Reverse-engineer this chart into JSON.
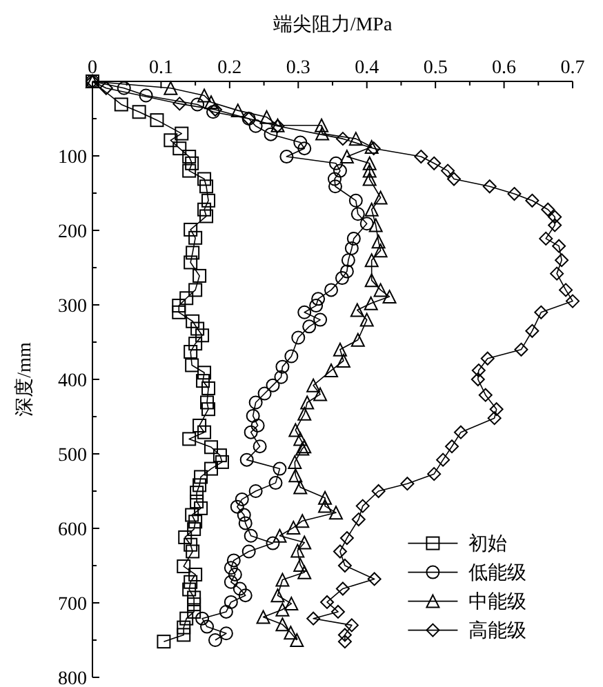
{
  "chart_data": {
    "type": "line",
    "xlabel": "端尖阻力/MPa",
    "ylabel": "深度/mm",
    "xlim": [
      0,
      0.7
    ],
    "xticks": [
      0,
      {
        "value": 0.05,
        "label": null
      },
      0.1,
      {
        "value": 0.15,
        "label": null
      },
      0.2,
      {
        "value": 0.25,
        "label": null
      },
      0.3,
      {
        "value": 0.35,
        "label": null
      },
      0.4,
      {
        "value": 0.45,
        "label": null
      },
      0.5,
      {
        "value": 0.55,
        "label": null
      },
      0.6,
      {
        "value": 0.65,
        "label": null
      },
      0.7
    ],
    "ylim": [
      800,
      0
    ],
    "yticks": [
      {
        "value": 0,
        "label": null
      },
      {
        "value": 50,
        "label": null
      },
      100,
      {
        "value": 150,
        "label": null
      },
      200,
      {
        "value": 250,
        "label": null
      },
      300,
      {
        "value": 350,
        "label": null
      },
      400,
      {
        "value": 450,
        "label": null
      },
      500,
      {
        "value": 550,
        "label": null
      },
      600,
      {
        "value": 650,
        "label": null
      },
      700,
      {
        "value": 750,
        "label": null
      },
      800
    ],
    "grid": false,
    "legend": "bottom right",
    "line_style": "solid",
    "series": [
      {
        "name": "初始",
        "color": "#000000",
        "marker": "square",
        "x": [
          0,
          0.042,
          0.068,
          0.094,
          0.13,
          0.114,
          0.127,
          0.141,
          0.145,
          0.141,
          0.163,
          0.166,
          0.169,
          0.163,
          0.166,
          0.143,
          0.15,
          0.146,
          0.143,
          0.156,
          0.15,
          0.137,
          0.126,
          0.126,
          0.146,
          0.153,
          0.16,
          0.15,
          0.143,
          0.145,
          0.163,
          0.161,
          0.169,
          0.167,
          0.169,
          0.156,
          0.163,
          0.141,
          0.173,
          0.186,
          0.189,
          0.173,
          0.158,
          0.156,
          0.152,
          0.152,
          0.158,
          0.145,
          0.15,
          0.148,
          0.135,
          0.143,
          0.146,
          0.133,
          0.15,
          0.143,
          0.141,
          0.148,
          0.148,
          0.148,
          0.137,
          0.133,
          0.133,
          0.104
        ],
        "values": [
          0,
          31,
          41,
          52,
          70,
          79,
          90,
          101,
          110,
          120,
          131,
          141,
          160,
          172,
          181,
          199,
          210,
          230,
          243,
          261,
          280,
          291,
          301,
          310,
          322,
          332,
          341,
          352,
          363,
          381,
          391,
          402,
          412,
          431,
          440,
          462,
          471,
          480,
          491,
          502,
          511,
          520,
          531,
          542,
          552,
          564,
          573,
          582,
          591,
          601,
          612,
          622,
          631,
          651,
          662,
          672,
          682,
          693,
          702,
          712,
          721,
          733,
          743,
          752
        ]
      },
      {
        "name": "低能级",
        "color": "#000000",
        "marker": "circle",
        "x": [
          0,
          0.046,
          0.078,
          0.153,
          0.176,
          0.228,
          0.238,
          0.26,
          0.303,
          0.309,
          0.283,
          0.355,
          0.361,
          0.353,
          0.354,
          0.384,
          0.387,
          0.4,
          0.381,
          0.378,
          0.373,
          0.371,
          0.364,
          0.348,
          0.329,
          0.326,
          0.309,
          0.332,
          0.316,
          0.3,
          0.29,
          0.277,
          0.275,
          0.263,
          0.251,
          0.238,
          0.234,
          0.241,
          0.231,
          0.244,
          0.225,
          0.273,
          0.267,
          0.238,
          0.218,
          0.211,
          0.221,
          0.223,
          0.231,
          0.263,
          0.228,
          0.206,
          0.202,
          0.208,
          0.202,
          0.215,
          0.223,
          0.202,
          0.195,
          0.16,
          0.167,
          0.195,
          0.179
        ],
        "values": [
          0,
          9,
          19,
          31,
          41,
          50,
          60,
          71,
          82,
          90,
          101,
          110,
          120,
          131,
          141,
          160,
          178,
          191,
          211,
          224,
          240,
          255,
          264,
          280,
          292,
          301,
          310,
          320,
          329,
          344,
          369,
          383,
          397,
          408,
          419,
          431,
          449,
          462,
          471,
          490,
          508,
          520,
          539,
          550,
          561,
          571,
          582,
          593,
          610,
          620,
          631,
          643,
          653,
          662,
          672,
          681,
          690,
          699,
          712,
          721,
          732,
          741,
          750
        ]
      },
      {
        "name": "中能级",
        "color": "#000000",
        "marker": "triangle",
        "x": [
          0,
          0.114,
          0.163,
          0.173,
          0.212,
          0.254,
          0.27,
          0.334,
          0.335,
          0.384,
          0.407,
          0.371,
          0.404,
          0.404,
          0.404,
          0.42,
          0.407,
          0.413,
          0.417,
          0.42,
          0.407,
          0.407,
          0.42,
          0.433,
          0.406,
          0.386,
          0.4,
          0.387,
          0.361,
          0.366,
          0.348,
          0.322,
          0.332,
          0.313,
          0.309,
          0.296,
          0.303,
          0.309,
          0.306,
          0.295,
          0.296,
          0.303,
          0.339,
          0.339,
          0.355,
          0.306,
          0.293,
          0.273,
          0.309,
          0.299,
          0.303,
          0.309,
          0.277,
          0.27,
          0.29,
          0.277,
          0.249,
          0.277,
          0.289,
          0.298
        ],
        "values": [
          0,
          9,
          19,
          28,
          39,
          48,
          59,
          59,
          70,
          77,
          88,
          101,
          110,
          120,
          131,
          156,
          172,
          193,
          215,
          227,
          240,
          267,
          280,
          289,
          298,
          307,
          320,
          347,
          360,
          375,
          388,
          408,
          420,
          431,
          446,
          468,
          480,
          490,
          493,
          511,
          529,
          545,
          559,
          570,
          579,
          590,
          599,
          610,
          619,
          630,
          649,
          659,
          669,
          690,
          701,
          709,
          719,
          729,
          740,
          750
        ]
      },
      {
        "name": "高能级",
        "color": "#000000",
        "marker": "diamond",
        "x": [
          0,
          0.02,
          0.127,
          0.179,
          0.228,
          0.27,
          0.365,
          0.41,
          0.479,
          0.498,
          0.518,
          0.527,
          0.579,
          0.615,
          0.641,
          0.664,
          0.674,
          0.674,
          0.661,
          0.68,
          0.684,
          0.677,
          0.69,
          0.7,
          0.654,
          0.641,
          0.625,
          0.576,
          0.563,
          0.562,
          0.573,
          0.589,
          0.586,
          0.537,
          0.524,
          0.511,
          0.498,
          0.459,
          0.417,
          0.394,
          0.388,
          0.371,
          0.361,
          0.368,
          0.411,
          0.365,
          0.342,
          0.358,
          0.322,
          0.378,
          0.368,
          0.368
        ],
        "values": [
          0,
          9,
          30,
          38,
          50,
          60,
          77,
          90,
          101,
          110,
          120,
          131,
          141,
          151,
          160,
          172,
          182,
          193,
          211,
          221,
          240,
          258,
          280,
          295,
          310,
          335,
          360,
          372,
          388,
          400,
          421,
          440,
          452,
          471,
          490,
          508,
          527,
          540,
          550,
          570,
          588,
          613,
          631,
          650,
          668,
          681,
          699,
          712,
          721,
          730,
          743,
          752
        ]
      }
    ]
  }
}
